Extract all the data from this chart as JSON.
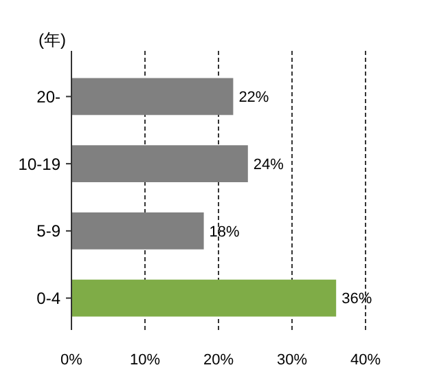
{
  "chart_data": {
    "type": "bar",
    "orientation": "horizontal",
    "ylabel": "(年)",
    "categories": [
      "20-",
      "10-19",
      "5-9",
      "0-4"
    ],
    "values": [
      22,
      24,
      18,
      36
    ],
    "colors": [
      "#808080",
      "#808080",
      "#808080",
      "#7fac47"
    ],
    "xlim": [
      0,
      40
    ],
    "xticks": [
      {
        "value": 0,
        "label": "0%"
      },
      {
        "value": 10,
        "label": "10%"
      },
      {
        "value": 20,
        "label": "20%"
      },
      {
        "value": 30,
        "label": "30%"
      },
      {
        "value": 40,
        "label": "40%"
      }
    ],
    "grid": "x",
    "value_labels": [
      "22%",
      "24%",
      "18%",
      "36%"
    ]
  }
}
